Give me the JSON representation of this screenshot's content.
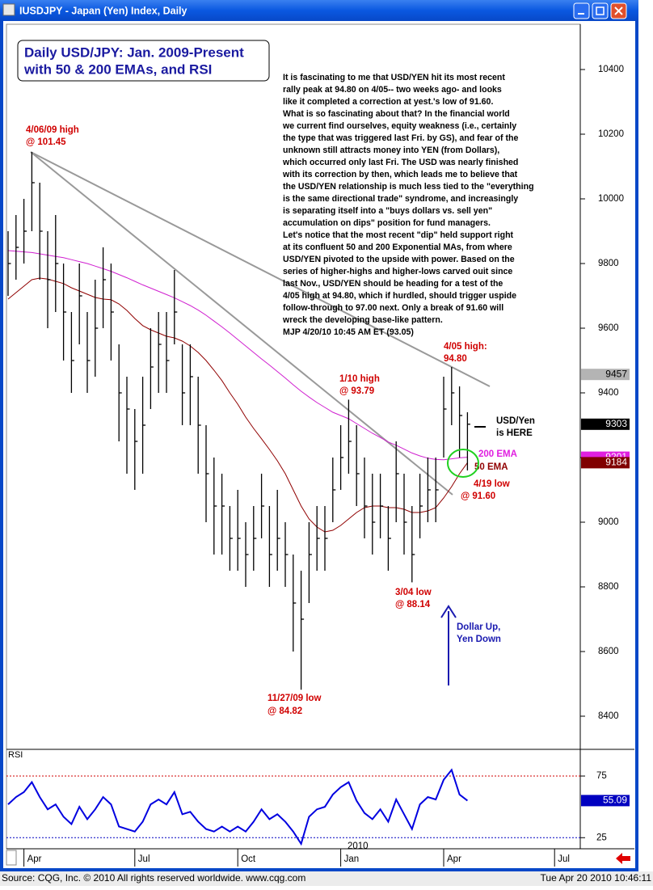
{
  "window": {
    "title": "IUSDJPY - Japan (Yen) Index, Daily"
  },
  "footer": {
    "source": "Source: CQG, Inc. © 2010 All rights reserved worldwide. www.cqg.com",
    "timestamp": "Tue Apr 20 2010 10:46:11"
  },
  "title_box": [
    "Daily USD/JPY: Jan. 2009-Present",
    "with 50 & 200 EMAs, and RSI"
  ],
  "commentary": [
    "It is fascinating to me that USD/YEN hit its most recent",
    "rally peak at 94.80 on 4/05-- two weeks ago- and looks",
    "like it completed a correction at yest.'s low of 91.60.",
    "What is so fascinating about that?  In the financial world",
    "we current find ourselves, equity weakness (i.e., certainly",
    "the type that was triggered last Fri. by GS), and fear of the",
    "unknown still attracts money into YEN (from Dollars),",
    "which occurred only last Fri. The USD was nearly finished",
    "with its correction by then, which leads me to believe that",
    "the USD/YEN relationship is much less tied to the \"everything",
    "is the same directional trade\" syndrome, and increasingly",
    "is separating itself into a \"buys dollars vs. sell yen\"",
    "accumulation on dips\" position for fund managers.",
    "Let's notice that the most recent \"dip\" held support right",
    "at its confluent 50 and 200 Exponential MAs, from where",
    "USD/YEN pivoted to the upside with power.  Based on the",
    "series of higher-highs and higher-lows carved ouit since",
    "last Nov.,  USD/YEN should be heading for a test of the",
    "4/05 high at 94.80, which if hurdled, should trigger uspide",
    "follow-through to 97.00 next. Only a break of 91.60 will",
    "wreck the developing base-like pattern.",
    "MJP  4/20/10  10:45 AM ET  (93.05)"
  ],
  "annotations": [
    "4/06/09 high",
    "@ 101.45",
    "1/10 high",
    "@ 93.79",
    "4/05 high:",
    "94.80",
    "3/04 low",
    "@ 88.14",
    "11/27/09 low",
    "@ 84.82",
    "4/19 low",
    "@ 91.60",
    "200 EMA",
    "50 EMA",
    "USD/Yen",
    "is HERE",
    "Dollar Up,",
    "Yen Down"
  ],
  "chart_data": [
    {
      "type": "ohlc",
      "categories": [
        null,
        null,
        "Apr",
        null,
        null,
        null,
        null,
        null,
        null,
        null,
        null,
        null,
        null,
        null,
        null,
        null,
        "Jul",
        null,
        null,
        null,
        null,
        null,
        null,
        null,
        null,
        null,
        null,
        null,
        null,
        "Oct",
        null,
        null,
        null,
        null,
        null,
        null,
        null,
        null,
        null,
        null,
        null,
        null,
        "Jan",
        null,
        null,
        null,
        null,
        null,
        null,
        null,
        null,
        null,
        null,
        null,
        null,
        "Apr",
        null,
        null,
        null,
        null,
        null,
        null,
        null,
        null,
        null,
        null,
        null,
        null,
        null,
        "Jul",
        null,
        null
      ],
      "x_year_label": "2010",
      "bar_color": "#000000",
      "high": [
        9900,
        9950,
        10000,
        10145,
        10050,
        9900,
        9950,
        9800,
        9650,
        9800,
        9650,
        9750,
        9850,
        9800,
        9550,
        9450,
        9350,
        9450,
        9600,
        9650,
        9650,
        9780,
        9550,
        9550,
        9450,
        9300,
        9200,
        9150,
        9050,
        9100,
        9000,
        9050,
        9150,
        9050,
        9100,
        9000,
        8900,
        8850,
        9000,
        9050,
        9050,
        9200,
        9300,
        9379,
        9300,
        9200,
        9150,
        9150,
        9050,
        9250,
        9150,
        9050,
        9150,
        9200,
        9200,
        9450,
        9480,
        9420,
        9340,
        null,
        null,
        null,
        null,
        null,
        null,
        null,
        null,
        null,
        null,
        null,
        null,
        null
      ],
      "low": [
        9700,
        9750,
        9800,
        9900,
        9750,
        9600,
        9650,
        9500,
        9400,
        9550,
        9400,
        9450,
        9600,
        9500,
        9250,
        9150,
        9100,
        9150,
        9350,
        9400,
        9400,
        9550,
        9300,
        9300,
        9150,
        9000,
        8900,
        8900,
        8850,
        8850,
        8800,
        8850,
        8950,
        8800,
        8850,
        8800,
        8600,
        8482,
        8750,
        8850,
        8850,
        9000,
        9100,
        9150,
        9050,
        8950,
        8900,
        8950,
        8850,
        9000,
        8900,
        8814,
        8950,
        9000,
        9000,
        9200,
        9300,
        9200,
        9160,
        null,
        null,
        null,
        null,
        null,
        null,
        null,
        null,
        null,
        null,
        null,
        null,
        null
      ],
      "close": [
        9800,
        9850,
        9900,
        10050,
        9900,
        9750,
        9800,
        9650,
        9500,
        9700,
        9500,
        9600,
        9750,
        9650,
        9400,
        9350,
        9250,
        9300,
        9480,
        9550,
        9500,
        9650,
        9400,
        9450,
        9300,
        9150,
        9050,
        9050,
        8950,
        8950,
        8900,
        8950,
        9050,
        8900,
        8950,
        8900,
        8750,
        8700,
        8900,
        8950,
        8950,
        9100,
        9200,
        9250,
        9150,
        9050,
        9000,
        9050,
        8950,
        9150,
        9000,
        8900,
        9050,
        9100,
        9100,
        9350,
        9400,
        9330,
        9303,
        null,
        null,
        null,
        null,
        null,
        null,
        null,
        null,
        null,
        null,
        null,
        null,
        null
      ],
      "ema_200": {
        "color": "#d020d0",
        "values": [
          9840,
          9838,
          9836,
          9834,
          9830,
          9826,
          9822,
          9818,
          9812,
          9806,
          9800,
          9792,
          9784,
          9776,
          9766,
          9756,
          9745,
          9734,
          9724,
          9714,
          9704,
          9694,
          9682,
          9670,
          9656,
          9640,
          9622,
          9604,
          9585,
          9565,
          9545,
          9525,
          9505,
          9486,
          9466,
          9446,
          9425,
          9405,
          9387,
          9370,
          9355,
          9340,
          9330,
          9320,
          9305,
          9290,
          9275,
          9262,
          9248,
          9238,
          9226,
          9214,
          9205,
          9198,
          9194,
          9193,
          9196,
          9199,
          9201,
          null,
          null,
          null,
          null,
          null,
          null,
          null,
          null,
          null,
          null,
          null,
          null,
          null
        ]
      },
      "ema_50": {
        "color": "#900000",
        "values": [
          9690,
          9710,
          9730,
          9750,
          9755,
          9752,
          9745,
          9738,
          9725,
          9715,
          9705,
          9695,
          9690,
          9688,
          9675,
          9655,
          9630,
          9608,
          9595,
          9585,
          9575,
          9570,
          9560,
          9545,
          9525,
          9500,
          9470,
          9438,
          9400,
          9365,
          9325,
          9290,
          9258,
          9225,
          9190,
          9150,
          9100,
          9050,
          9010,
          8985,
          8970,
          8975,
          8990,
          9010,
          9030,
          9045,
          9050,
          9050,
          9045,
          9045,
          9040,
          9030,
          9030,
          9035,
          9045,
          9075,
          9110,
          9150,
          9184,
          null,
          null,
          null,
          null,
          null,
          null,
          null,
          null,
          null,
          null,
          null,
          null,
          null
        ]
      },
      "ylim": [
        8300,
        10540
      ],
      "yticks": [
        8400,
        8600,
        8800,
        9000,
        9200,
        9400,
        9600,
        9800,
        10000,
        10200,
        10400
      ],
      "price_tags": [
        {
          "value": 9457,
          "fill": "#b4b4b4",
          "text_color": "#000000"
        },
        {
          "value": 9303,
          "fill": "#000000",
          "text_color": "#ffffff"
        },
        {
          "value": 9201,
          "fill": "#e020e0",
          "text_color": "#ffffff"
        },
        {
          "value": 9184,
          "fill": "#800000",
          "text_color": "#ffffff"
        }
      ]
    },
    {
      "type": "line",
      "title": "RSI",
      "color": "#0000e0",
      "values": [
        52,
        58,
        62,
        70,
        58,
        48,
        52,
        42,
        36,
        50,
        40,
        48,
        58,
        52,
        34,
        32,
        30,
        38,
        52,
        56,
        52,
        62,
        44,
        46,
        38,
        32,
        30,
        34,
        30,
        34,
        30,
        38,
        48,
        40,
        44,
        38,
        30,
        20,
        42,
        48,
        50,
        60,
        66,
        70,
        55,
        45,
        40,
        48,
        38,
        56,
        44,
        32,
        52,
        58,
        56,
        72,
        80,
        60,
        55.09,
        null,
        null,
        null,
        null,
        null,
        null,
        null,
        null,
        null,
        null,
        null,
        null,
        null
      ],
      "ylim": [
        16,
        96
      ],
      "yticks": [
        25,
        75
      ],
      "level_colors": [
        "#0000c0",
        "#d00000"
      ],
      "current_value": 55.09,
      "tag_color": "#0000c0"
    }
  ]
}
